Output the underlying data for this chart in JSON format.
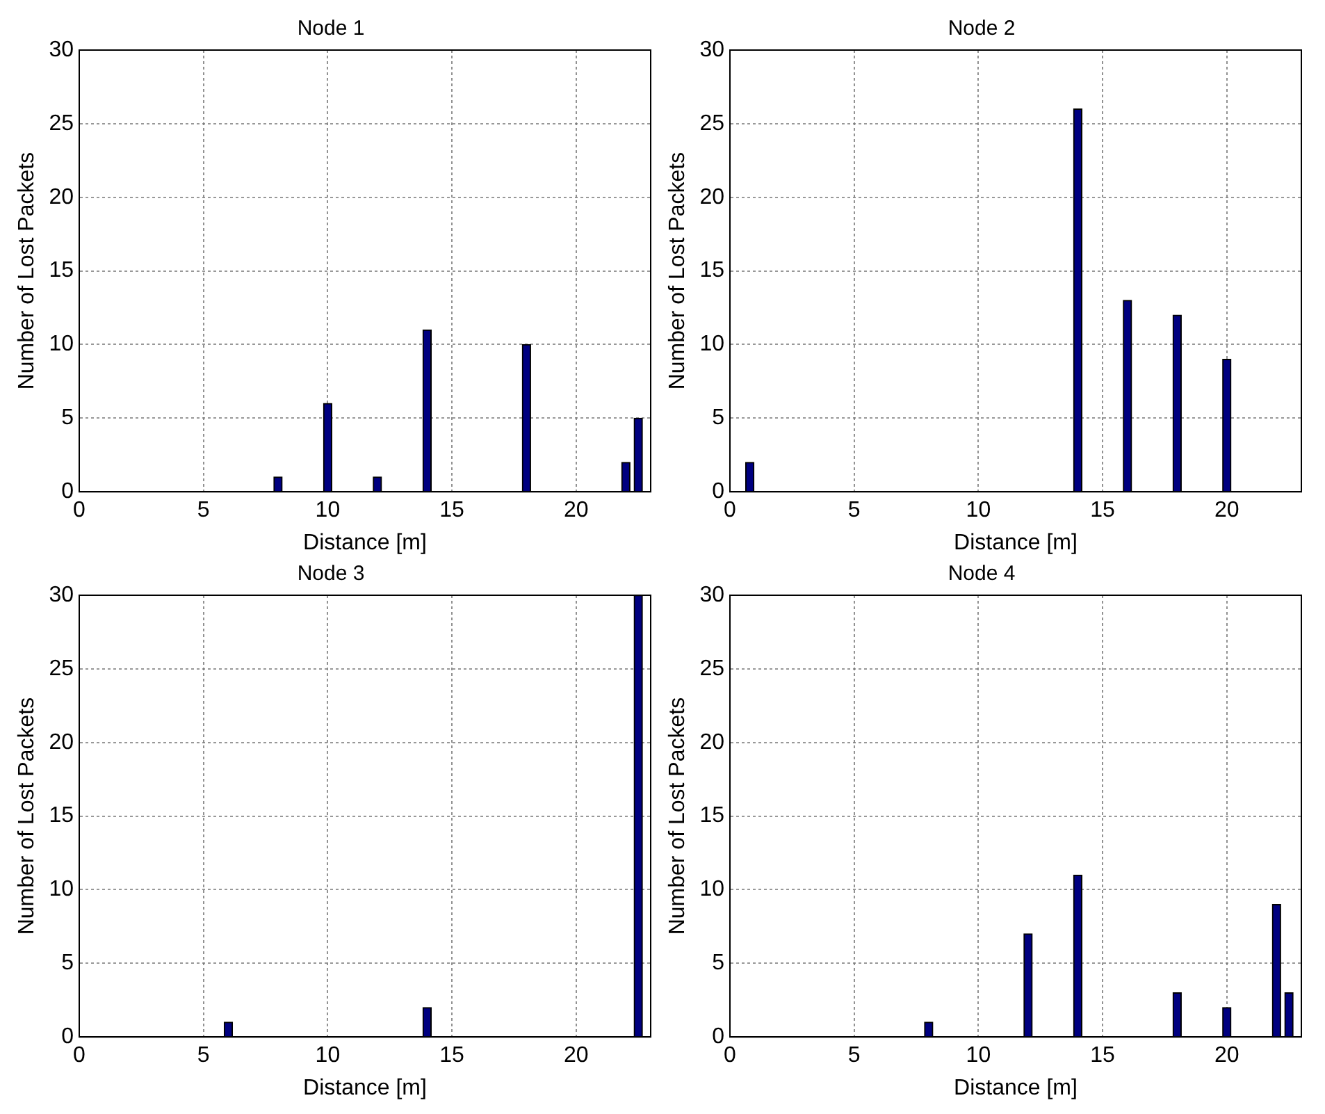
{
  "chart_data": [
    {
      "type": "bar",
      "title": "Node 1",
      "xlabel": "Distance [m]",
      "ylabel": "Number of Lost Packets",
      "x": [
        8,
        10,
        12,
        14,
        18,
        22,
        22.5
      ],
      "values": [
        1,
        6,
        1,
        11,
        10,
        2,
        5
      ],
      "color": "#000080",
      "xlim": [
        0,
        23
      ],
      "xticks": [
        0,
        5,
        10,
        15,
        20
      ],
      "ylim": [
        0,
        30
      ],
      "yticks": [
        0,
        5,
        10,
        15,
        20,
        25,
        30
      ],
      "grid": true
    },
    {
      "type": "bar",
      "title": "Node 2",
      "xlabel": "Distance [m]",
      "ylabel": "Number of Lost Packets",
      "x": [
        0.8,
        14,
        16,
        18,
        20
      ],
      "values": [
        2,
        26,
        13,
        12,
        9
      ],
      "color": "#000080",
      "xlim": [
        0,
        23
      ],
      "xticks": [
        0,
        5,
        10,
        15,
        20
      ],
      "ylim": [
        0,
        30
      ],
      "yticks": [
        0,
        5,
        10,
        15,
        20,
        25,
        30
      ],
      "grid": true
    },
    {
      "type": "bar",
      "title": "Node 3",
      "xlabel": "Distance [m]",
      "ylabel": "Number of Lost Packets",
      "x": [
        6,
        14,
        22.5
      ],
      "values": [
        1,
        2,
        30
      ],
      "color": "#000080",
      "xlim": [
        0,
        23
      ],
      "xticks": [
        0,
        5,
        10,
        15,
        20
      ],
      "ylim": [
        0,
        30
      ],
      "yticks": [
        0,
        5,
        10,
        15,
        20,
        25,
        30
      ],
      "grid": true
    },
    {
      "type": "bar",
      "title": "Node 4",
      "xlabel": "Distance [m]",
      "ylabel": "Number of Lost Packets",
      "x": [
        8,
        12,
        14,
        18,
        20,
        22,
        22.5
      ],
      "values": [
        1,
        7,
        11,
        3,
        2,
        9,
        3
      ],
      "color": "#000080",
      "xlim": [
        0,
        23
      ],
      "xticks": [
        0,
        5,
        10,
        15,
        20
      ],
      "ylim": [
        0,
        30
      ],
      "yticks": [
        0,
        5,
        10,
        15,
        20,
        25,
        30
      ],
      "grid": true
    }
  ]
}
